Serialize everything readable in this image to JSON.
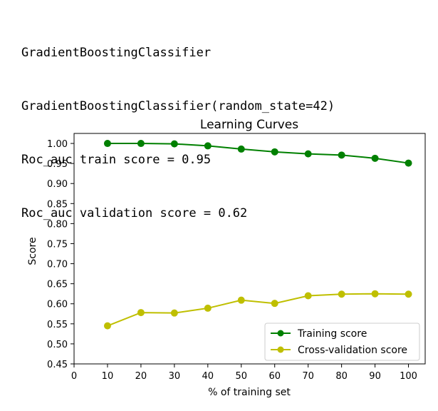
{
  "output": {
    "lines": [
      "GradientBoostingClassifier",
      "GradientBoostingClassifier(random_state=42)",
      "Roc_auc train score = 0.95",
      "Roc_auc validation score = 0.62"
    ]
  },
  "chart_data": {
    "type": "line",
    "title": "Learning Curves",
    "xlabel": "% of training set",
    "ylabel": "Score",
    "xlim": [
      0,
      105
    ],
    "ylim": [
      0.45,
      1.025
    ],
    "xticks": [
      0,
      10,
      20,
      30,
      40,
      50,
      60,
      70,
      80,
      90,
      100
    ],
    "yticks": [
      0.45,
      0.5,
      0.55,
      0.6,
      0.65,
      0.7,
      0.75,
      0.8,
      0.85,
      0.9,
      0.95,
      1.0
    ],
    "grid": false,
    "legend": "lower-right",
    "x": [
      10,
      20,
      30,
      40,
      50,
      60,
      70,
      80,
      90,
      100
    ],
    "series": [
      {
        "name": "Training score",
        "color": "#008000",
        "values": [
          1.0,
          1.0,
          0.999,
          0.994,
          0.986,
          0.979,
          0.974,
          0.971,
          0.963,
          0.951
        ]
      },
      {
        "name": "Cross-validation score",
        "color": "#bfbf00",
        "values": [
          0.545,
          0.578,
          0.577,
          0.589,
          0.609,
          0.601,
          0.62,
          0.624,
          0.625,
          0.624
        ]
      }
    ]
  }
}
